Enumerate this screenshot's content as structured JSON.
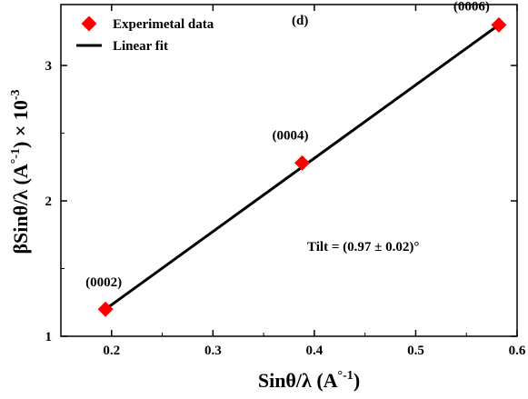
{
  "chart_data": {
    "type": "scatter",
    "panel_label": "(d)",
    "xlabel_main": "Sinθ/λ (A",
    "xlabel_sup": "°-1",
    "xlabel_close": ")",
    "ylabel_main": "βSinθ/λ (A",
    "ylabel_sup1": "°-1",
    "ylabel_mid": ") × 10",
    "ylabel_sup2": "-3",
    "xlim": [
      0.15,
      0.6
    ],
    "ylim": [
      1.0,
      3.45
    ],
    "xticks": [
      0.2,
      0.3,
      0.4,
      0.5,
      0.6
    ],
    "xtick_labels": [
      "0.2",
      "0.3",
      "0.4",
      "0.5",
      "0.6"
    ],
    "yticks": [
      1,
      2,
      3
    ],
    "ytick_labels": [
      "1",
      "2",
      "3"
    ],
    "series": [
      {
        "name": "Experimetal data",
        "kind": "points",
        "color": "#ff0000",
        "marker": "diamond",
        "x": [
          0.194,
          0.388,
          0.582
        ],
        "y": [
          1.2,
          2.28,
          3.3
        ],
        "labels": [
          "(0002)",
          "(0004)",
          "(0006)"
        ]
      },
      {
        "name": "Linear fit",
        "kind": "line",
        "color": "#000000",
        "x": [
          0.194,
          0.582
        ],
        "y": [
          1.2,
          3.3
        ]
      }
    ],
    "annotation": "Tilt = (0.97 ± 0.02)°",
    "legend_position": "top-left",
    "grid": false
  }
}
